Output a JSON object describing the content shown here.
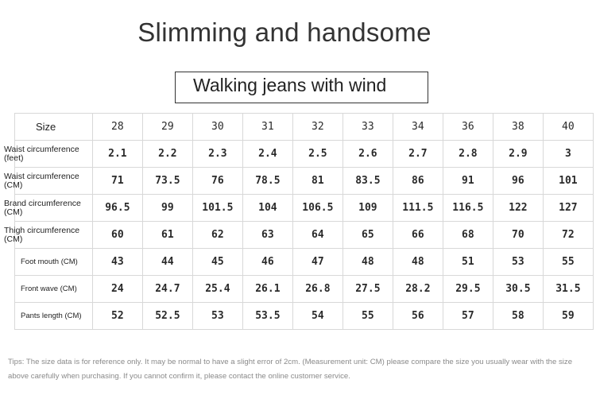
{
  "title": "Slimming and handsome",
  "subtitle": "Walking jeans with wind",
  "table": {
    "header_label": "Size",
    "sizes": [
      "28",
      "29",
      "30",
      "31",
      "32",
      "33",
      "34",
      "36",
      "38",
      "40"
    ],
    "rows": [
      {
        "label": "Waist circumference (feet)",
        "values": [
          "2.1",
          "2.2",
          "2.3",
          "2.4",
          "2.5",
          "2.6",
          "2.7",
          "2.8",
          "2.9",
          "3"
        ]
      },
      {
        "label": "Waist circumference (CM)",
        "values": [
          "71",
          "73.5",
          "76",
          "78.5",
          "81",
          "83.5",
          "86",
          "91",
          "96",
          "101"
        ]
      },
      {
        "label": "Brand circumference (CM)",
        "values": [
          "96.5",
          "99",
          "101.5",
          "104",
          "106.5",
          "109",
          "111.5",
          "116.5",
          "122",
          "127"
        ]
      },
      {
        "label": "Thigh circumference (CM)",
        "values": [
          "60",
          "61",
          "62",
          "63",
          "64",
          "65",
          "66",
          "68",
          "70",
          "72"
        ]
      },
      {
        "label": "Foot mouth (CM)",
        "values": [
          "43",
          "44",
          "45",
          "46",
          "47",
          "48",
          "48",
          "51",
          "53",
          "55"
        ]
      },
      {
        "label": "Front wave (CM)",
        "values": [
          "24",
          "24.7",
          "25.4",
          "26.1",
          "26.8",
          "27.5",
          "28.2",
          "29.5",
          "30.5",
          "31.5"
        ]
      },
      {
        "label": "Pants length (CM)",
        "values": [
          "52",
          "52.5",
          "53",
          "53.5",
          "54",
          "55",
          "56",
          "57",
          "58",
          "59"
        ]
      }
    ]
  },
  "tips": "Tips: The size data is for reference only. It may be normal to have a slight error of 2cm. (Measurement unit: CM) please compare the size you usually wear with the size above carefully when purchasing. If you cannot confirm it, please contact the online customer service."
}
